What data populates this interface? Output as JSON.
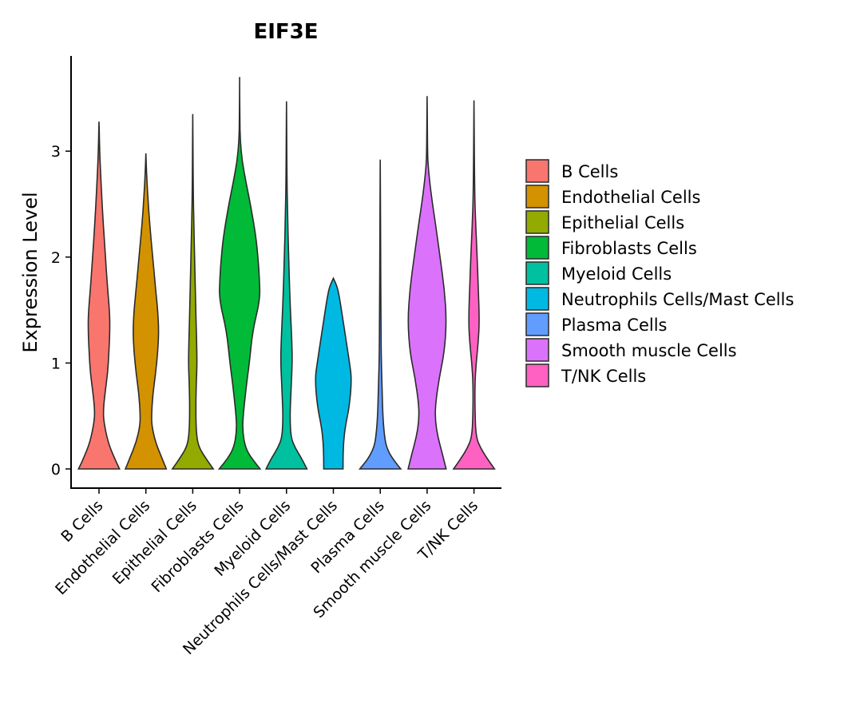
{
  "chart_data": {
    "type": "violin",
    "title": "EIF3E",
    "xlabel": "",
    "ylabel": "Expression Level",
    "ylim": [
      -0.2,
      3.9
    ],
    "yticks": [
      0,
      1,
      2,
      3
    ],
    "grid": false,
    "legend_position": "right",
    "categories": [
      "B Cells",
      "Endothelial Cells",
      "Epithelial Cells",
      "Fibroblasts Cells",
      "Myeloid Cells",
      "Neutrophils Cells/Mast Cells",
      "Plasma Cells",
      "Smooth muscle Cells",
      "T/NK Cells"
    ],
    "series": [
      {
        "name": "B Cells",
        "color": "#F8766D",
        "max": 3.28,
        "profile": [
          [
            0,
            0.95
          ],
          [
            0.1,
            0.72
          ],
          [
            0.25,
            0.42
          ],
          [
            0.45,
            0.22
          ],
          [
            0.55,
            0.2
          ],
          [
            0.7,
            0.27
          ],
          [
            0.9,
            0.4
          ],
          [
            1.1,
            0.46
          ],
          [
            1.3,
            0.5
          ],
          [
            1.45,
            0.5
          ],
          [
            1.7,
            0.4
          ],
          [
            2.0,
            0.3
          ],
          [
            2.3,
            0.2
          ],
          [
            2.6,
            0.12
          ],
          [
            2.9,
            0.05
          ],
          [
            3.1,
            0.02
          ],
          [
            3.28,
            0.0
          ]
        ]
      },
      {
        "name": "Endothelial Cells",
        "color": "#D39200",
        "max": 2.98,
        "profile": [
          [
            0,
            0.95
          ],
          [
            0.1,
            0.75
          ],
          [
            0.25,
            0.45
          ],
          [
            0.4,
            0.28
          ],
          [
            0.5,
            0.26
          ],
          [
            0.7,
            0.32
          ],
          [
            0.9,
            0.45
          ],
          [
            1.1,
            0.55
          ],
          [
            1.3,
            0.6
          ],
          [
            1.5,
            0.55
          ],
          [
            1.7,
            0.45
          ],
          [
            2.0,
            0.32
          ],
          [
            2.3,
            0.18
          ],
          [
            2.6,
            0.08
          ],
          [
            2.8,
            0.03
          ],
          [
            2.98,
            0.0
          ]
        ]
      },
      {
        "name": "Epithelial Cells",
        "color": "#93AA00",
        "max": 3.35,
        "profile": [
          [
            0,
            0.95
          ],
          [
            0.1,
            0.6
          ],
          [
            0.2,
            0.3
          ],
          [
            0.3,
            0.18
          ],
          [
            0.5,
            0.14
          ],
          [
            0.8,
            0.16
          ],
          [
            1.0,
            0.2
          ],
          [
            1.2,
            0.18
          ],
          [
            1.5,
            0.14
          ],
          [
            1.9,
            0.1
          ],
          [
            2.3,
            0.05
          ],
          [
            2.7,
            0.02
          ],
          [
            3.35,
            0.0
          ]
        ]
      },
      {
        "name": "Fibroblasts Cells",
        "color": "#00BA38",
        "max": 3.7,
        "profile": [
          [
            0,
            0.95
          ],
          [
            0.1,
            0.55
          ],
          [
            0.2,
            0.27
          ],
          [
            0.35,
            0.14
          ],
          [
            0.5,
            0.16
          ],
          [
            0.8,
            0.32
          ],
          [
            1.0,
            0.45
          ],
          [
            1.3,
            0.6
          ],
          [
            1.6,
            0.95
          ],
          [
            1.8,
            0.92
          ],
          [
            2.0,
            0.85
          ],
          [
            2.2,
            0.75
          ],
          [
            2.5,
            0.5
          ],
          [
            2.7,
            0.3
          ],
          [
            2.9,
            0.12
          ],
          [
            3.1,
            0.03
          ],
          [
            3.3,
            0.01
          ],
          [
            3.7,
            0.0
          ]
        ]
      },
      {
        "name": "Myeloid Cells",
        "color": "#00C19F",
        "max": 3.47,
        "profile": [
          [
            0,
            0.95
          ],
          [
            0.1,
            0.7
          ],
          [
            0.2,
            0.4
          ],
          [
            0.3,
            0.2
          ],
          [
            0.5,
            0.16
          ],
          [
            0.7,
            0.2
          ],
          [
            1.0,
            0.27
          ],
          [
            1.2,
            0.25
          ],
          [
            1.6,
            0.16
          ],
          [
            2.0,
            0.1
          ],
          [
            2.4,
            0.05
          ],
          [
            2.8,
            0.02
          ],
          [
            3.47,
            0.0
          ]
        ]
      },
      {
        "name": "Neutrophils Cells/Mast Cells",
        "color": "#00B9E3",
        "max": 1.8,
        "profile": [
          [
            0,
            0.45
          ],
          [
            0.1,
            0.45
          ],
          [
            0.25,
            0.47
          ],
          [
            0.4,
            0.55
          ],
          [
            0.6,
            0.75
          ],
          [
            0.85,
            0.85
          ],
          [
            1.0,
            0.75
          ],
          [
            1.2,
            0.6
          ],
          [
            1.4,
            0.45
          ],
          [
            1.6,
            0.3
          ],
          [
            1.72,
            0.18
          ],
          [
            1.8,
            0.0
          ]
        ]
      },
      {
        "name": "Plasma Cells",
        "color": "#619CFF",
        "max": 2.92,
        "profile": [
          [
            0,
            0.95
          ],
          [
            0.1,
            0.55
          ],
          [
            0.2,
            0.3
          ],
          [
            0.3,
            0.2
          ],
          [
            0.5,
            0.12
          ],
          [
            0.8,
            0.08
          ],
          [
            1.0,
            0.05
          ],
          [
            1.4,
            0.03
          ],
          [
            2.0,
            0.02
          ],
          [
            2.92,
            0.0
          ]
        ]
      },
      {
        "name": "Smooth muscle Cells",
        "color": "#DB72FB",
        "max": 3.52,
        "profile": [
          [
            0,
            0.88
          ],
          [
            0.15,
            0.7
          ],
          [
            0.3,
            0.5
          ],
          [
            0.45,
            0.38
          ],
          [
            0.6,
            0.38
          ],
          [
            0.85,
            0.55
          ],
          [
            1.1,
            0.8
          ],
          [
            1.4,
            0.9
          ],
          [
            1.7,
            0.8
          ],
          [
            2.0,
            0.6
          ],
          [
            2.3,
            0.4
          ],
          [
            2.6,
            0.18
          ],
          [
            2.85,
            0.05
          ],
          [
            3.0,
            0.02
          ],
          [
            3.52,
            0.0
          ]
        ]
      },
      {
        "name": "T/NK Cells",
        "color": "#FF61C3",
        "max": 3.48,
        "profile": [
          [
            0,
            0.95
          ],
          [
            0.1,
            0.6
          ],
          [
            0.2,
            0.3
          ],
          [
            0.3,
            0.1
          ],
          [
            0.5,
            0.05
          ],
          [
            0.8,
            0.04
          ],
          [
            1.0,
            0.1
          ],
          [
            1.2,
            0.2
          ],
          [
            1.4,
            0.25
          ],
          [
            1.7,
            0.2
          ],
          [
            2.0,
            0.15
          ],
          [
            2.3,
            0.08
          ],
          [
            2.6,
            0.03
          ],
          [
            3.48,
            0.0
          ]
        ]
      }
    ]
  }
}
